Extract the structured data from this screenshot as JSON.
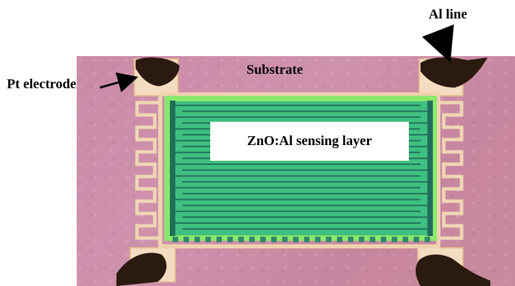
{
  "labels": {
    "al_line": "Al line",
    "pt_electrode": "Pt electrode",
    "substrate": "Substrate",
    "sensing_layer": "ZnO:Al sensing layer"
  },
  "colors": {
    "substrate": "#c98aa6",
    "sensing_layer": "#38b879",
    "electrode": "#f2d9b8",
    "al_wire": "#2a1a10"
  }
}
